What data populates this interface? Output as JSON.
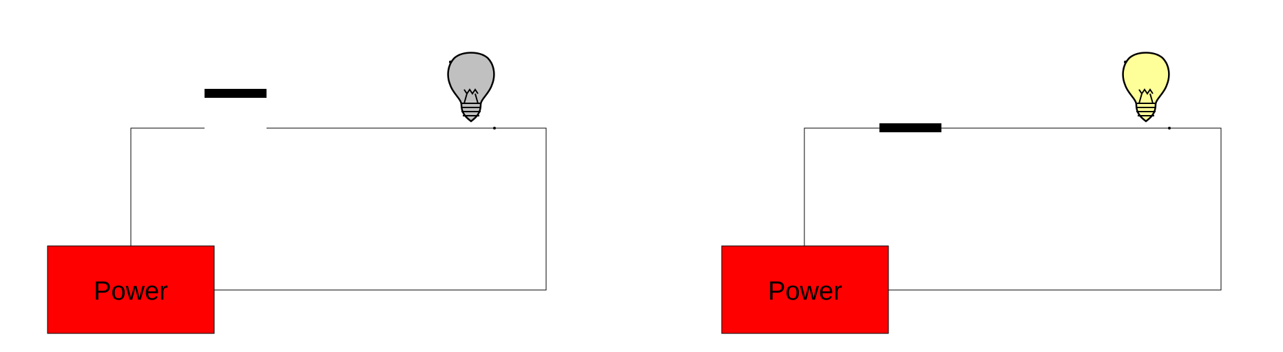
{
  "colors": {
    "power_fill": "#ff0000",
    "bulb_off": "#c0c0c0",
    "bulb_on": "#ffff99",
    "wire": "#000000",
    "switch": "#000000"
  },
  "circuits": [
    {
      "state": "open",
      "switch": "open",
      "bulb": "off",
      "power_label": "Power"
    },
    {
      "state": "closed",
      "switch": "closed",
      "bulb": "on",
      "power_label": "Power"
    }
  ]
}
